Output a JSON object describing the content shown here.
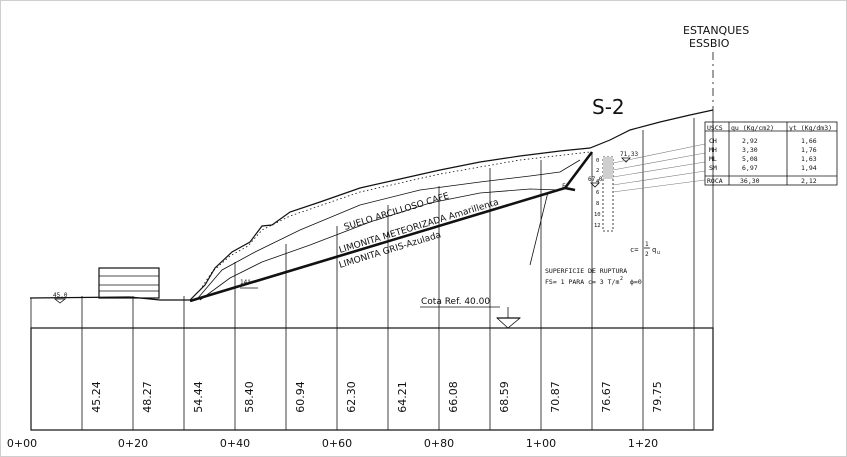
{
  "title": "S-2",
  "tank_label": [
    "ESTANQUES",
    "ESSBIO"
  ],
  "strata_labels": [
    "SUELO ARCILLOSO CAFE",
    "LIMONITA METEORIZADA Amarillenta",
    "LIMONITA GRIS-Azulada"
  ],
  "failure_note": {
    "line1": "SUPERFICIE DE RUPTURA",
    "line2": "FS= 1 PARA c= 3 T/m",
    "exp": "2",
    "phi": "ϕ=0"
  },
  "cohesion_formula": {
    "lhs": "c=",
    "num": "1",
    "den": "2",
    "qu": "q",
    "sub": "u"
  },
  "reference": "Cota Ref. 40.00",
  "angle_label": "14°",
  "water_levels": [
    "45,0",
    "67,0",
    "71,33"
  ],
  "borehole_depths": [
    "0",
    "2",
    "4",
    "6",
    "8",
    "10",
    "12"
  ],
  "marker_label": "F",
  "soil_table": {
    "headers": [
      "USCS",
      "qu (Kg/cm2)",
      "γt (Kg/dm3)"
    ],
    "rows": [
      {
        "uscs": "CH",
        "qu": "2,92",
        "gt": "1,66"
      },
      {
        "uscs": "MH",
        "qu": "3,30",
        "gt": "1,76"
      },
      {
        "uscs": "ML",
        "qu": "5,08",
        "gt": "1,63"
      },
      {
        "uscs": "SM",
        "qu": "6,97",
        "gt": "1,94"
      },
      {
        "uscs": "ROCA",
        "qu": "36,30",
        "gt": "2,12"
      }
    ]
  },
  "elevations": [
    "45.24",
    "48.27",
    "54.44",
    "58.40",
    "60.94",
    "62.30",
    "64.21",
    "66.08",
    "68.59",
    "70.87",
    "76.67",
    "79.75"
  ],
  "stations": [
    "0+00",
    "0+20",
    "0+40",
    "0+60",
    "0+80",
    "1+00",
    "1+20"
  ]
}
